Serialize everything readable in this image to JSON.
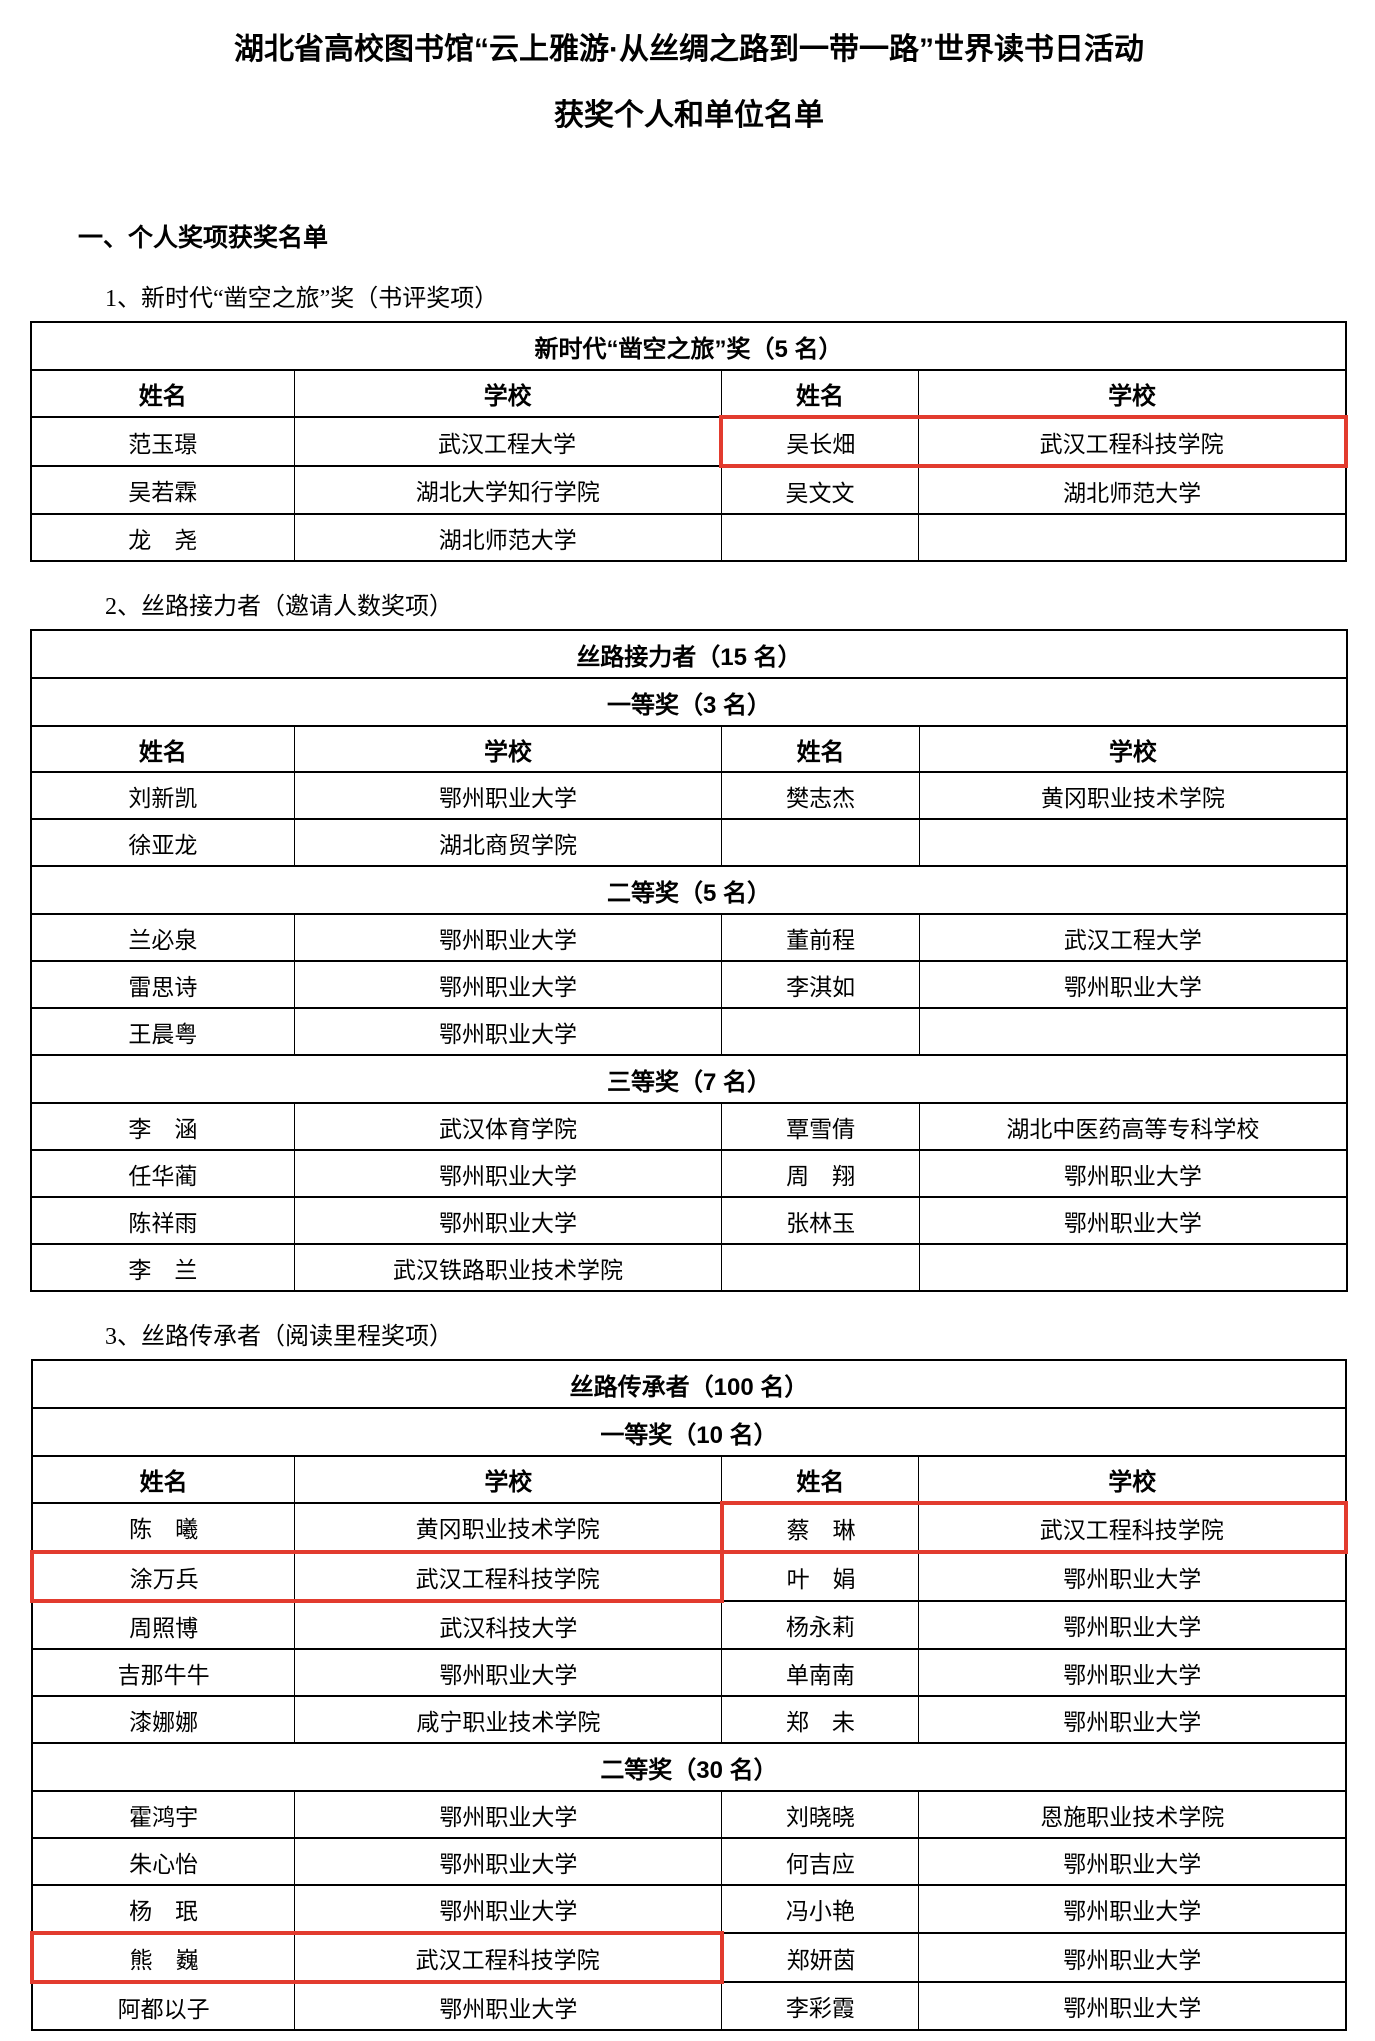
{
  "doc": {
    "title_line1": "湖北省高校图书馆“云上雅游·从丝绸之路到一带一路”世界读书日活动",
    "title_line2": "获奖个人和单位名单",
    "section1_heading": "一、个人奖项获奖名单"
  },
  "colors": {
    "highlight_box": "#e23b2e",
    "text": "#000000",
    "table_border": "#000000"
  },
  "tables": [
    {
      "caption": "1、新时代“凿空之旅”奖（书评奖项）",
      "rows": [
        {
          "type": "band",
          "text": "新时代“凿空之旅”奖（5 名）"
        },
        {
          "type": "header",
          "cells": [
            "姓名",
            "学校",
            "姓名",
            "学校"
          ]
        },
        {
          "type": "data",
          "cells": [
            "范玉璟",
            "武汉工程大学",
            "吴长畑",
            "武汉工程科技学院"
          ],
          "highlight": "right"
        },
        {
          "type": "data",
          "cells": [
            "吴若霖",
            "湖北大学知行学院",
            "吴文文",
            "湖北师范大学"
          ],
          "highlight": null
        },
        {
          "type": "data",
          "cells": [
            "龙　尧",
            "湖北师范大学",
            "",
            ""
          ],
          "highlight": null
        }
      ]
    },
    {
      "caption": "2、丝路接力者（邀请人数奖项）",
      "rows": [
        {
          "type": "band",
          "text": "丝路接力者（15 名）"
        },
        {
          "type": "band",
          "text": "一等奖（3 名）"
        },
        {
          "type": "header",
          "cells": [
            "姓名",
            "学校",
            "姓名",
            "学校"
          ]
        },
        {
          "type": "data",
          "cells": [
            "刘新凯",
            "鄂州职业大学",
            "樊志杰",
            "黄冈职业技术学院"
          ],
          "highlight": null
        },
        {
          "type": "data",
          "cells": [
            "徐亚龙",
            "湖北商贸学院",
            "",
            ""
          ],
          "highlight": null
        },
        {
          "type": "band",
          "text": "二等奖（5 名）"
        },
        {
          "type": "data",
          "cells": [
            "兰必泉",
            "鄂州职业大学",
            "董前程",
            "武汉工程大学"
          ],
          "highlight": null
        },
        {
          "type": "data",
          "cells": [
            "雷思诗",
            "鄂州职业大学",
            "李淇如",
            "鄂州职业大学"
          ],
          "highlight": null
        },
        {
          "type": "data",
          "cells": [
            "王晨粤",
            "鄂州职业大学",
            "",
            ""
          ],
          "highlight": null
        },
        {
          "type": "band",
          "text": "三等奖（7 名）"
        },
        {
          "type": "data",
          "cells": [
            "李　涵",
            "武汉体育学院",
            "覃雪倩",
            "湖北中医药高等专科学校"
          ],
          "highlight": null
        },
        {
          "type": "data",
          "cells": [
            "任华蔺",
            "鄂州职业大学",
            "周　翔",
            "鄂州职业大学"
          ],
          "highlight": null
        },
        {
          "type": "data",
          "cells": [
            "陈祥雨",
            "鄂州职业大学",
            "张林玉",
            "鄂州职业大学"
          ],
          "highlight": null
        },
        {
          "type": "data",
          "cells": [
            "李　兰",
            "武汉铁路职业技术学院",
            "",
            ""
          ],
          "highlight": null
        }
      ]
    },
    {
      "caption": "3、丝路传承者（阅读里程奖项）",
      "rows": [
        {
          "type": "band",
          "text": "丝路传承者（100 名）"
        },
        {
          "type": "band",
          "text": "一等奖（10 名）"
        },
        {
          "type": "header",
          "cells": [
            "姓名",
            "学校",
            "姓名",
            "学校"
          ]
        },
        {
          "type": "data",
          "cells": [
            "陈　曦",
            "黄冈职业技术学院",
            "蔡　琳",
            "武汉工程科技学院"
          ],
          "highlight": "right"
        },
        {
          "type": "data",
          "cells": [
            "涂万兵",
            "武汉工程科技学院",
            "叶　娟",
            "鄂州职业大学"
          ],
          "highlight": "left"
        },
        {
          "type": "data",
          "cells": [
            "周照博",
            "武汉科技大学",
            "杨永莉",
            "鄂州职业大学"
          ],
          "highlight": null
        },
        {
          "type": "data",
          "cells": [
            "吉那牛牛",
            "鄂州职业大学",
            "单南南",
            "鄂州职业大学"
          ],
          "highlight": null
        },
        {
          "type": "data",
          "cells": [
            "漆娜娜",
            "咸宁职业技术学院",
            "郑　未",
            "鄂州职业大学"
          ],
          "highlight": null
        },
        {
          "type": "band",
          "text": "二等奖（30 名）"
        },
        {
          "type": "data",
          "cells": [
            "霍鸿宇",
            "鄂州职业大学",
            "刘晓晓",
            "恩施职业技术学院"
          ],
          "highlight": null
        },
        {
          "type": "data",
          "cells": [
            "朱心怡",
            "鄂州职业大学",
            "何吉应",
            "鄂州职业大学"
          ],
          "highlight": null
        },
        {
          "type": "data",
          "cells": [
            "杨　珉",
            "鄂州职业大学",
            "冯小艳",
            "鄂州职业大学"
          ],
          "highlight": null
        },
        {
          "type": "data",
          "cells": [
            "熊　巍",
            "武汉工程科技学院",
            "郑妍茵",
            "鄂州职业大学"
          ],
          "highlight": "left"
        },
        {
          "type": "data",
          "cells": [
            "阿都以子",
            "鄂州职业大学",
            "李彩霞",
            "鄂州职业大学"
          ],
          "highlight": null
        }
      ]
    }
  ]
}
